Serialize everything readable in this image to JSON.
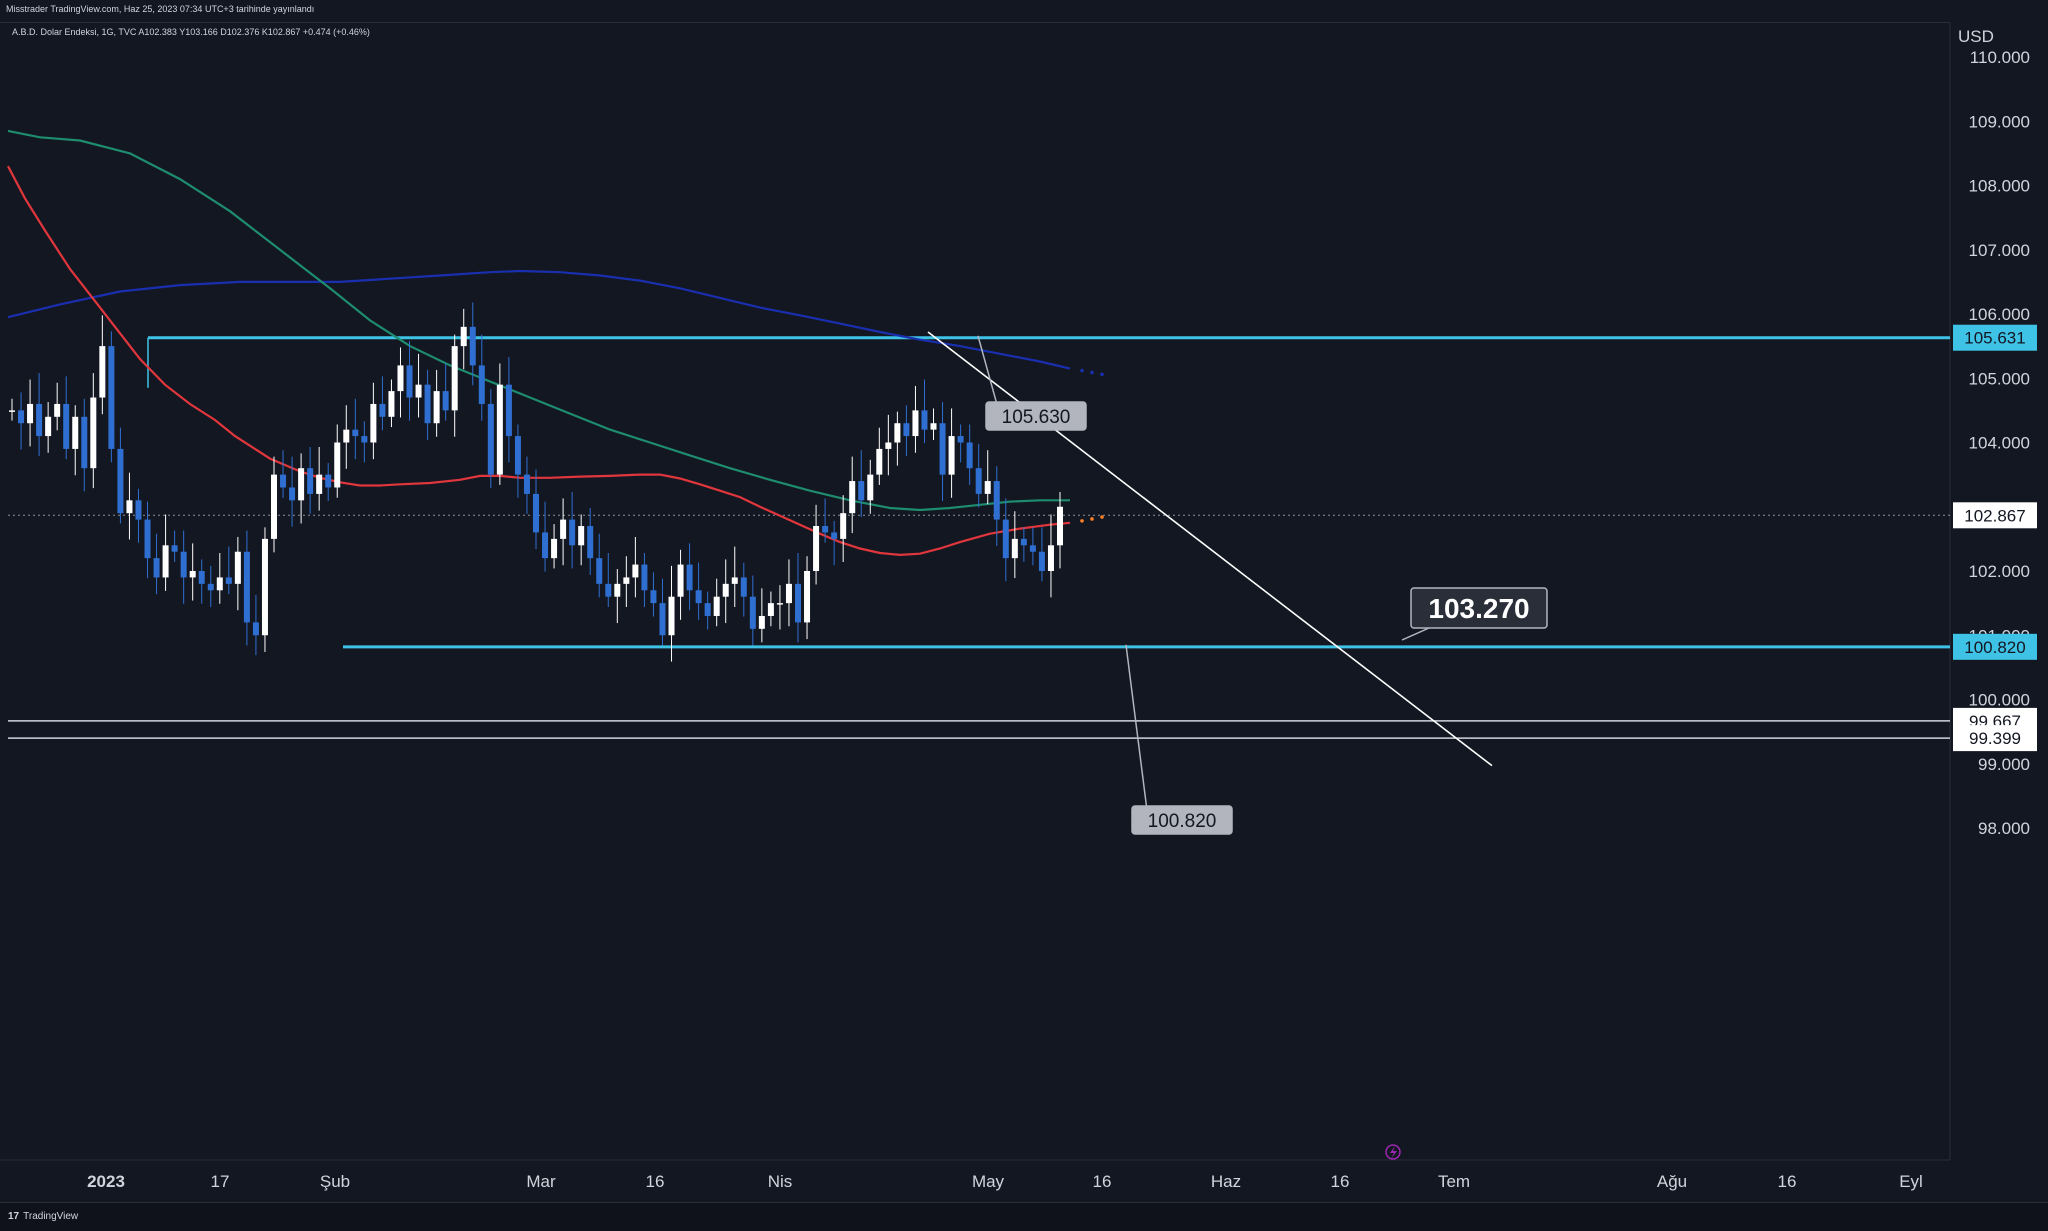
{
  "header": {
    "published": "Misstrader TradingView.com, Haz 25, 2023 07:34 UTC+3 tarihinde yayınlandı",
    "symbol_info": "A.B.D. Dolar Endeksi, 1G, TVC A102.383 Y103.166 D102.376 K102.867 +0.474 (+0.46%)"
  },
  "footer": {
    "brand": "TradingView"
  },
  "colors": {
    "background": "#131722",
    "up_candle": "#ffffff",
    "down_candle": "#2f6fd1",
    "ma_red": "#e0363c",
    "ma_green": "#1e8c6e",
    "ma_blue": "#1a2fb0",
    "support_resistance": "#3ec3e6",
    "trendline": "#ffffff"
  },
  "chart_data": {
    "type": "candlestick",
    "currency": "USD",
    "ylim": [
      97.0,
      110.5
    ],
    "y_ticks": [
      "110.000",
      "109.000",
      "108.000",
      "107.000",
      "106.000",
      "105.000",
      "104.000",
      "102.000",
      "101.000",
      "100.000",
      "99.000",
      "98.000"
    ],
    "x_ticks": [
      "2023",
      "17",
      "Şub",
      "Mar",
      "16",
      "Nis",
      "May",
      "16",
      "Haz",
      "16",
      "Tem",
      "Ağu",
      "16",
      "Eyl"
    ],
    "price_labels": [
      {
        "value": "105.631",
        "style": "cyan"
      },
      {
        "value": "102.867",
        "style": "white"
      },
      {
        "value": "100.820",
        "style": "cyan"
      },
      {
        "value": "99.667",
        "style": "white"
      },
      {
        "value": "99.399",
        "style": "white"
      }
    ],
    "annotations": [
      "105.630",
      "100.820",
      "103.270"
    ],
    "levels": {
      "resistance": 105.63,
      "support": 100.82,
      "last": 102.867,
      "h1": 99.667,
      "h2": 99.399
    },
    "trendline": {
      "from": [
        105.72,
        928
      ],
      "to": [
        98.97,
        1492
      ]
    },
    "closes": [
      104.5,
      104.3,
      104.6,
      104.1,
      104.4,
      104.6,
      103.9,
      104.4,
      103.6,
      104.7,
      105.5,
      103.9,
      102.9,
      103.1,
      102.8,
      102.2,
      101.9,
      102.4,
      102.3,
      101.9,
      102.0,
      101.8,
      101.7,
      101.9,
      101.8,
      102.3,
      101.2,
      101.0,
      102.5,
      103.5,
      103.3,
      103.1,
      103.6,
      103.2,
      103.5,
      103.3,
      104.0,
      104.2,
      104.1,
      104.0,
      104.6,
      104.4,
      104.8,
      105.2,
      104.7,
      104.9,
      104.3,
      104.8,
      104.5,
      105.5,
      105.8,
      105.2,
      104.6,
      103.5,
      104.9,
      104.1,
      103.5,
      103.2,
      102.6,
      102.2,
      102.5,
      102.8,
      102.4,
      102.7,
      102.2,
      101.8,
      101.6,
      101.8,
      101.9,
      102.1,
      101.7,
      101.5,
      101.0,
      101.6,
      102.1,
      101.7,
      101.5,
      101.3,
      101.6,
      101.8,
      101.9,
      101.6,
      101.1,
      101.3,
      101.5,
      101.5,
      101.8,
      101.2,
      102.0,
      102.7,
      102.6,
      102.5,
      102.9,
      103.4,
      103.1,
      103.5,
      103.9,
      104.0,
      104.3,
      104.1,
      104.5,
      104.2,
      104.3,
      103.5,
      104.1,
      104.0,
      103.6,
      103.2,
      103.4,
      102.8,
      102.2,
      102.5,
      102.4,
      102.3,
      102.0,
      102.4,
      103.0
    ],
    "ma_red": [
      [
        108.3,
        8
      ],
      [
        107.8,
        25
      ],
      [
        107.3,
        45
      ],
      [
        106.7,
        70
      ],
      [
        106.2,
        95
      ],
      [
        105.7,
        120
      ],
      [
        105.3,
        140
      ],
      [
        104.9,
        165
      ],
      [
        104.6,
        190
      ],
      [
        104.35,
        215
      ],
      [
        104.1,
        235
      ],
      [
        103.9,
        255
      ],
      [
        103.75,
        270
      ],
      [
        103.65,
        285
      ],
      [
        103.55,
        300
      ],
      [
        103.45,
        320
      ],
      [
        103.38,
        340
      ],
      [
        103.33,
        360
      ],
      [
        103.33,
        380
      ],
      [
        103.35,
        400
      ],
      [
        103.37,
        430
      ],
      [
        103.42,
        460
      ],
      [
        103.48,
        480
      ],
      [
        103.48,
        500
      ],
      [
        103.45,
        520
      ],
      [
        103.45,
        550
      ],
      [
        103.47,
        580
      ],
      [
        103.48,
        610
      ],
      [
        103.5,
        640
      ],
      [
        103.5,
        660
      ],
      [
        103.44,
        680
      ],
      [
        103.35,
        700
      ],
      [
        103.25,
        720
      ],
      [
        103.15,
        740
      ],
      [
        103.0,
        760
      ],
      [
        102.86,
        780
      ],
      [
        102.72,
        800
      ],
      [
        102.58,
        820
      ],
      [
        102.45,
        840
      ],
      [
        102.35,
        860
      ],
      [
        102.28,
        880
      ],
      [
        102.25,
        900
      ],
      [
        102.27,
        920
      ],
      [
        102.35,
        940
      ],
      [
        102.45,
        960
      ],
      [
        102.58,
        990
      ],
      [
        102.66,
        1020
      ],
      [
        102.72,
        1050
      ],
      [
        102.75,
        1070
      ]
    ],
    "ma_green": [
      [
        108.85,
        8
      ],
      [
        108.75,
        40
      ],
      [
        108.7,
        80
      ],
      [
        108.5,
        130
      ],
      [
        108.1,
        180
      ],
      [
        107.6,
        230
      ],
      [
        107.0,
        280
      ],
      [
        106.4,
        330
      ],
      [
        105.9,
        370
      ],
      [
        105.5,
        410
      ],
      [
        105.2,
        450
      ],
      [
        104.95,
        490
      ],
      [
        104.7,
        530
      ],
      [
        104.45,
        570
      ],
      [
        104.2,
        610
      ],
      [
        104.0,
        650
      ],
      [
        103.8,
        690
      ],
      [
        103.6,
        730
      ],
      [
        103.42,
        770
      ],
      [
        103.25,
        810
      ],
      [
        103.1,
        850
      ],
      [
        102.98,
        890
      ],
      [
        102.95,
        920
      ],
      [
        102.98,
        950
      ],
      [
        103.03,
        980
      ],
      [
        103.08,
        1010
      ],
      [
        103.1,
        1040
      ],
      [
        103.1,
        1070
      ]
    ],
    "ma_blue": [
      [
        105.95,
        8
      ],
      [
        106.15,
        60
      ],
      [
        106.35,
        120
      ],
      [
        106.45,
        180
      ],
      [
        106.5,
        240
      ],
      [
        106.5,
        290
      ],
      [
        106.5,
        340
      ],
      [
        106.55,
        390
      ],
      [
        106.6,
        440
      ],
      [
        106.65,
        490
      ],
      [
        106.67,
        520
      ],
      [
        106.65,
        560
      ],
      [
        106.6,
        600
      ],
      [
        106.52,
        640
      ],
      [
        106.4,
        680
      ],
      [
        106.25,
        720
      ],
      [
        106.1,
        760
      ],
      [
        105.98,
        800
      ],
      [
        105.85,
        840
      ],
      [
        105.72,
        880
      ],
      [
        105.6,
        920
      ],
      [
        105.5,
        960
      ],
      [
        105.38,
        1000
      ],
      [
        105.26,
        1040
      ],
      [
        105.15,
        1070
      ]
    ]
  }
}
